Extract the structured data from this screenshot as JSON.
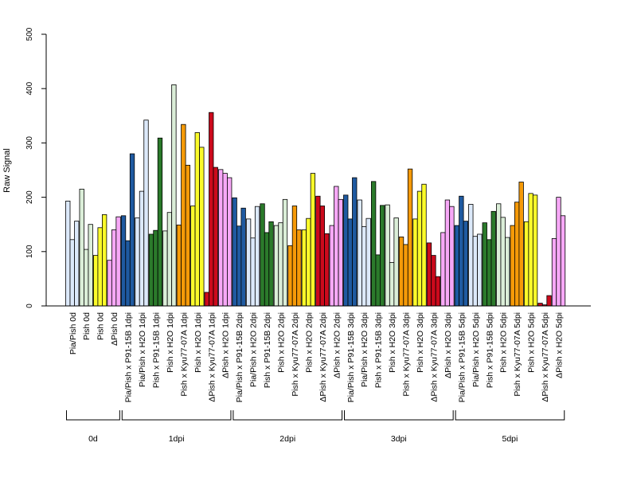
{
  "chart_data": {
    "type": "bar",
    "title": "",
    "ylabel": "Raw Signal",
    "ylim": [
      0,
      500
    ],
    "yticks": [
      0,
      100,
      200,
      300,
      400,
      500
    ],
    "grid": false,
    "categories": [
      "Pia/Pish 0d",
      "Pish 0d",
      "Pish 0d",
      "ΔPish 0d",
      "Pia/Pish x P91-15B 1dpi",
      "Pia/Pish x H2O 1dpi",
      "Pish x P91-15B 1dpi",
      "Pish x H2O 1dpi",
      "Pish x Kyu77-07A 1dpi",
      "Pish x H2O 1dpi",
      "ΔPish x Kyu77-07A 1dpi",
      "ΔPish x H2O 1dpi",
      "Pia/Pish x P91-15B 2dpi",
      "Pia/Pish x H2O 2dpi",
      "Pish x P91-15B 2dpi",
      "Pish x H2O 2dpi",
      "Pish x Kyu77-07A 2dpi",
      "Pish x H2O 2dpi",
      "ΔPish x Kyu77-07A 2dpi",
      "ΔPish x H2O 2dpi",
      "Pia/Pish x P91-15B 3dpi",
      "Pia/Pish x H2O 3dpi",
      "Pish x P91-15B 3dpi",
      "Pish x H2O 3dpi",
      "Pish x Kyu77-07A 3dpi",
      "Pish x H2O 3dpi",
      "ΔPish x Kyu77-07A 3dpi",
      "ΔPish x H2O 3dpi",
      "Pia/Pish x P91-15B 5dpi",
      "Pia/Pish x H2O 5dpi",
      "Pish x P91-15B 5dpi",
      "Pish x H2O 5dpi",
      "Pish x Kyu77-07A 5dpi",
      "Pish x H2O 5dpi",
      "ΔPish x Kyu77-07A 5dpi",
      "ΔPish x H2O 5dpi"
    ],
    "values": [
      [
        193,
        122,
        156
      ],
      [
        215,
        104,
        150
      ],
      [
        93,
        144,
        168
      ],
      [
        84,
        140,
        164
      ],
      [
        166,
        120,
        280
      ],
      [
        162,
        211,
        342
      ],
      [
        132,
        139,
        309
      ],
      [
        138,
        172,
        407
      ],
      [
        149,
        334,
        259
      ],
      [
        184,
        319,
        292
      ],
      [
        25,
        356,
        255
      ],
      [
        251,
        244,
        236
      ],
      [
        199,
        147,
        180
      ],
      [
        160,
        125,
        183
      ],
      [
        188,
        135,
        155
      ],
      [
        148,
        153,
        196
      ],
      [
        111,
        184,
        140
      ],
      [
        140,
        161,
        244
      ],
      [
        202,
        184,
        133
      ],
      [
        148,
        220,
        196
      ],
      [
        204,
        160,
        236
      ],
      [
        195,
        146,
        161
      ],
      [
        229,
        94,
        185
      ],
      [
        186,
        80,
        162
      ],
      [
        127,
        113,
        252
      ],
      [
        160,
        211,
        224
      ],
      [
        116,
        93,
        54
      ],
      [
        135,
        195,
        183
      ],
      [
        148,
        202,
        156
      ],
      [
        187,
        128,
        132
      ],
      [
        153,
        122,
        174
      ],
      [
        188,
        163,
        126
      ],
      [
        148,
        191,
        228
      ],
      [
        155,
        207,
        204
      ],
      [
        5,
        2,
        19
      ],
      [
        124,
        200,
        166
      ]
    ],
    "colors": [
      "#dce9fa",
      "#dbeed8",
      "#fbfb2a",
      "#f7a8f7",
      "#1f5aa1",
      "#dce9fa",
      "#2b7a2b",
      "#dbeed8",
      "#f59a08",
      "#fbfb2a",
      "#cc0a1c",
      "#f7a8f7",
      "#1f5aa1",
      "#dce9fa",
      "#2b7a2b",
      "#dbeed8",
      "#f59a08",
      "#fbfb2a",
      "#cc0a1c",
      "#f7a8f7",
      "#1f5aa1",
      "#dce9fa",
      "#2b7a2b",
      "#dbeed8",
      "#f59a08",
      "#fbfb2a",
      "#cc0a1c",
      "#f7a8f7",
      "#1f5aa1",
      "#dce9fa",
      "#2b7a2b",
      "#dbeed8",
      "#f59a08",
      "#fbfb2a",
      "#cc0a1c",
      "#f7a8f7"
    ],
    "groups": [
      {
        "label": "0d",
        "from": 0,
        "to": 3
      },
      {
        "label": "1dpi",
        "from": 4,
        "to": 11
      },
      {
        "label": "2dpi",
        "from": 12,
        "to": 19
      },
      {
        "label": "3dpi",
        "from": 20,
        "to": 27
      },
      {
        "label": "5dpi",
        "from": 28,
        "to": 35
      }
    ]
  }
}
